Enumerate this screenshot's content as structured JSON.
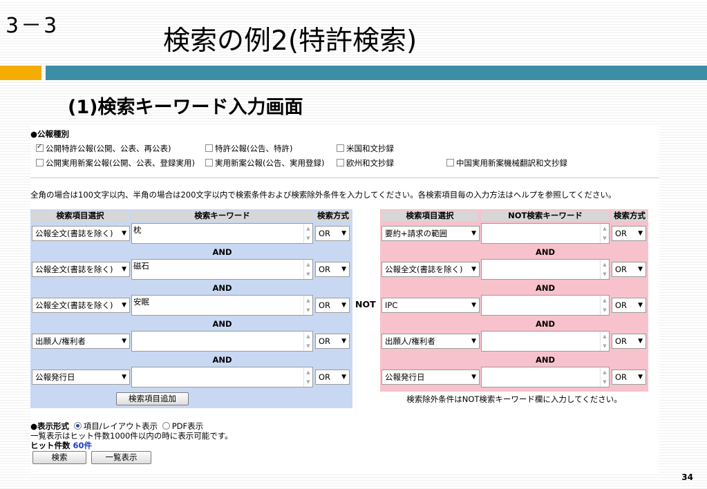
{
  "slide": {
    "number": "3－3",
    "title": "検索の例2(特許検索)",
    "subtitle": "(1)検索キーワード入力画面",
    "page": "34"
  },
  "colors": {
    "accent_orange": "#f4ad00",
    "accent_teal": "#3c8ea6",
    "panel_blue": "#c9d8f2",
    "panel_pink": "#f8c2cc"
  },
  "publication": {
    "heading": "●公報種別",
    "items": [
      {
        "label": "公開特許公報(公開、公表、再公表)",
        "checked": true
      },
      {
        "label": "特許公報(公告、特許)",
        "checked": false
      },
      {
        "label": "米国和文抄録",
        "checked": false
      },
      {
        "label": "公開実用新案公報(公開、公表、登録実用)",
        "checked": false
      },
      {
        "label": "実用新案公報(公告、実用登録)",
        "checked": false
      },
      {
        "label": "欧州和文抄録",
        "checked": false
      },
      {
        "label": "中国実用新案機械翻訳和文抄録",
        "checked": false
      }
    ]
  },
  "instruction": "全角の場合は100文字以内、半角の場合は200文字以内で検索条件および検索除外条件を入力してください。各検索項目毎の入力方法はヘルプを参照してください。",
  "left_panel": {
    "headers": [
      "検索項目選択",
      "検索キーワード",
      "検索方式"
    ],
    "rows": [
      {
        "field": "公報全文(書誌を除く)",
        "keyword": "枕",
        "mode": "OR"
      },
      {
        "field": "公報全文(書誌を除く)",
        "keyword": "磁石",
        "mode": "OR"
      },
      {
        "field": "公報全文(書誌を除く)",
        "keyword": "安眠",
        "mode": "OR"
      },
      {
        "field": "出願人/権利者",
        "keyword": "",
        "mode": "OR"
      },
      {
        "field": "公報発行日",
        "keyword": "",
        "mode": "OR"
      }
    ],
    "and_label": "AND",
    "add_button": "検索項目追加"
  },
  "not_label": "NOT",
  "right_panel": {
    "headers": [
      "検索項目選択",
      "NOT検索キーワード",
      "検索方式"
    ],
    "rows": [
      {
        "field": "要約+請求の範囲",
        "keyword": "",
        "mode": "OR"
      },
      {
        "field": "公報全文(書誌を除く)",
        "keyword": "",
        "mode": "OR"
      },
      {
        "field": "IPC",
        "keyword": "",
        "mode": "OR"
      },
      {
        "field": "出願人/権利者",
        "keyword": "",
        "mode": "OR"
      },
      {
        "field": "公報発行日",
        "keyword": "",
        "mode": "OR"
      }
    ],
    "and_label": "AND",
    "note": "検索除外条件はNOT検索キーワード欄に入力してください。"
  },
  "display": {
    "heading": "●表示形式",
    "option1": "項目/レイアウト表示",
    "option2": "PDF表示",
    "note": "一覧表示はヒット件数1000件以内の時に表示可能です。",
    "hits_label": "ヒット件数",
    "hits_value": "60件",
    "search_button": "検索",
    "list_button": "一覧表示"
  }
}
